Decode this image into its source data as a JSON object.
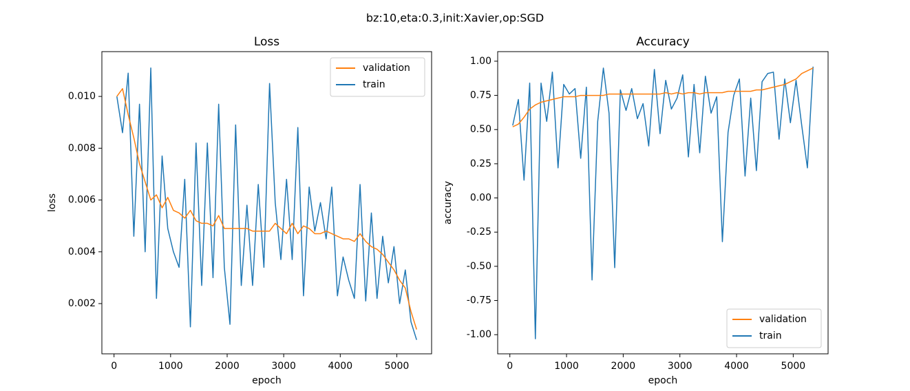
{
  "title": "bz:10,eta:0.3,init:Xavier,op:SGD",
  "chart_data": [
    {
      "type": "line",
      "title": "Loss",
      "xlabel": "epoch",
      "ylabel": "loss",
      "legend": "upper right",
      "x": [
        50,
        150,
        250,
        350,
        450,
        550,
        650,
        750,
        850,
        950,
        1050,
        1150,
        1250,
        1350,
        1450,
        1550,
        1650,
        1750,
        1850,
        1950,
        2050,
        2150,
        2250,
        2350,
        2450,
        2550,
        2650,
        2750,
        2850,
        2950,
        3050,
        3150,
        3250,
        3350,
        3450,
        3550,
        3650,
        3750,
        3850,
        3950,
        4050,
        4150,
        4250,
        4350,
        4450,
        4550,
        4650,
        4750,
        4850,
        4950,
        5050,
        5150,
        5250,
        5350
      ],
      "series": [
        {
          "name": "validation",
          "color": "#ff7f0e",
          "values": [
            0.01,
            0.0103,
            0.0093,
            0.0084,
            0.0074,
            0.0067,
            0.006,
            0.0062,
            0.0057,
            0.0061,
            0.0056,
            0.0055,
            0.0053,
            0.0056,
            0.0052,
            0.0051,
            0.0051,
            0.005,
            0.0054,
            0.0049,
            0.0049,
            0.0049,
            0.0049,
            0.0049,
            0.0048,
            0.0048,
            0.0048,
            0.0048,
            0.0051,
            0.0049,
            0.0047,
            0.0051,
            0.0047,
            0.005,
            0.0049,
            0.0047,
            0.0047,
            0.0048,
            0.0047,
            0.0046,
            0.0045,
            0.0045,
            0.0044,
            0.0047,
            0.0044,
            0.0042,
            0.0041,
            0.0039,
            0.0036,
            0.0033,
            0.0029,
            0.0026,
            0.0017,
            0.001
          ]
        },
        {
          "name": "train",
          "color": "#1f77b4",
          "values": [
            0.01,
            0.0086,
            0.0109,
            0.0046,
            0.0097,
            0.004,
            0.0111,
            0.0022,
            0.0077,
            0.0049,
            0.004,
            0.0034,
            0.0068,
            0.0011,
            0.0082,
            0.0027,
            0.0082,
            0.003,
            0.0097,
            0.0034,
            0.0012,
            0.0089,
            0.0027,
            0.0058,
            0.0027,
            0.0066,
            0.0034,
            0.0105,
            0.0059,
            0.0037,
            0.0068,
            0.0037,
            0.0088,
            0.0023,
            0.0065,
            0.0048,
            0.0059,
            0.0045,
            0.0065,
            0.0023,
            0.0038,
            0.0029,
            0.0022,
            0.0066,
            0.0021,
            0.0055,
            0.0022,
            0.0046,
            0.0028,
            0.0042,
            0.002,
            0.0033,
            0.0013,
            0.0006
          ]
        }
      ],
      "xlim": [
        -215,
        5615
      ],
      "ylim": [
        6e-05,
        0.01173
      ],
      "xticks": [
        0,
        1000,
        2000,
        3000,
        4000,
        5000
      ],
      "yticks": [
        0.002,
        0.004,
        0.006,
        0.008,
        {
          "value": 0.01,
          "label": "0.010"
        }
      ]
    },
    {
      "type": "line",
      "title": "Accuracy",
      "xlabel": "epoch",
      "ylabel": "accuracy",
      "legend": "lower right",
      "x": [
        50,
        150,
        250,
        350,
        450,
        550,
        650,
        750,
        850,
        950,
        1050,
        1150,
        1250,
        1350,
        1450,
        1550,
        1650,
        1750,
        1850,
        1950,
        2050,
        2150,
        2250,
        2350,
        2450,
        2550,
        2650,
        2750,
        2850,
        2950,
        3050,
        3150,
        3250,
        3350,
        3450,
        3550,
        3650,
        3750,
        3850,
        3950,
        4050,
        4150,
        4250,
        4350,
        4450,
        4550,
        4650,
        4750,
        4850,
        4950,
        5050,
        5150,
        5250,
        5350
      ],
      "series": [
        {
          "name": "validation",
          "color": "#ff7f0e",
          "values": [
            0.52,
            0.54,
            0.59,
            0.65,
            0.68,
            0.7,
            0.71,
            0.72,
            0.73,
            0.74,
            0.74,
            0.74,
            0.75,
            0.75,
            0.75,
            0.75,
            0.75,
            0.76,
            0.76,
            0.76,
            0.76,
            0.76,
            0.76,
            0.76,
            0.76,
            0.76,
            0.76,
            0.77,
            0.76,
            0.77,
            0.76,
            0.77,
            0.77,
            0.76,
            0.77,
            0.77,
            0.77,
            0.77,
            0.78,
            0.78,
            0.78,
            0.78,
            0.78,
            0.79,
            0.79,
            0.8,
            0.81,
            0.82,
            0.83,
            0.85,
            0.87,
            0.91,
            0.93,
            0.95
          ]
        },
        {
          "name": "train",
          "color": "#1f77b4",
          "values": [
            0.53,
            0.72,
            0.13,
            0.84,
            -1.03,
            0.84,
            0.56,
            0.92,
            0.22,
            0.83,
            0.76,
            0.8,
            0.29,
            0.81,
            -0.6,
            0.56,
            0.95,
            0.62,
            -0.51,
            0.79,
            0.64,
            0.8,
            0.58,
            0.69,
            0.38,
            0.94,
            0.47,
            0.86,
            0.65,
            0.73,
            0.9,
            0.3,
            0.83,
            0.33,
            0.89,
            0.62,
            0.74,
            -0.32,
            0.48,
            0.75,
            0.87,
            0.16,
            0.73,
            0.2,
            0.85,
            0.91,
            0.92,
            0.43,
            0.87,
            0.55,
            0.86,
            0.53,
            0.22,
            0.96
          ]
        }
      ],
      "xlim": [
        -215,
        5615
      ],
      "ylim": [
        -1.14,
        1.07
      ],
      "xticks": [
        0,
        1000,
        2000,
        3000,
        4000,
        5000
      ],
      "yticks": [
        {
          "value": -1,
          "label": "-1.00"
        },
        -0.75,
        {
          "value": -0.5,
          "label": "-0.50"
        },
        -0.25,
        {
          "value": 0,
          "label": "0.00"
        },
        0.25,
        {
          "value": 0.5,
          "label": "0.50"
        },
        0.75,
        {
          "value": 1,
          "label": "1.00"
        }
      ]
    }
  ]
}
